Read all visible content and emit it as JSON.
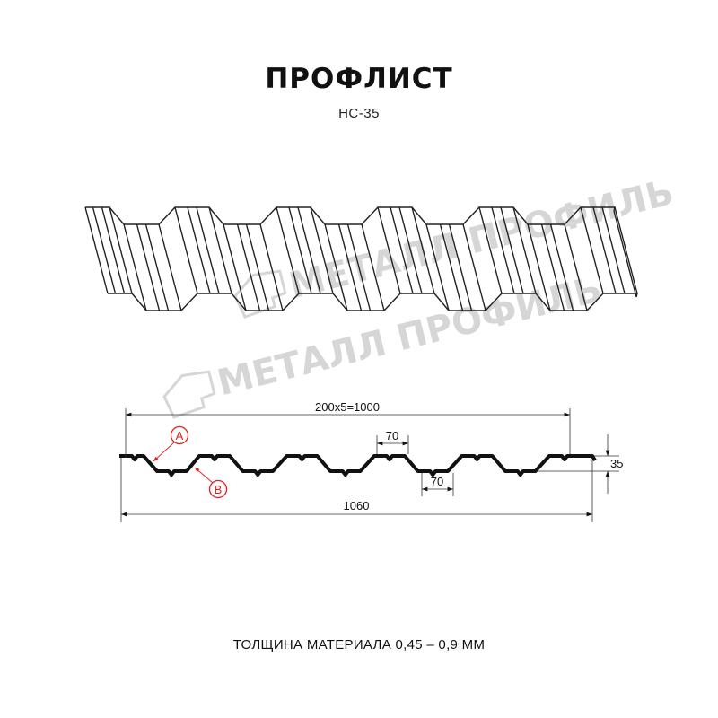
{
  "header": {
    "title": "ПРОФЛИСТ",
    "subtitle": "НС-35"
  },
  "watermark": {
    "text": "МЕТАЛЛ ПРОФИЛЬ"
  },
  "dimensions": {
    "pitch_total": "200x5=1000",
    "crest_width": "70",
    "valley_width": "70",
    "height": "35",
    "overall_width": "1060"
  },
  "markers": {
    "a": "A",
    "b": "B"
  },
  "footer": {
    "thickness": "ТОЛЩИНА МАТЕРИАЛА 0,45 – 0,9 ММ"
  },
  "colors": {
    "profile": "#111111",
    "marker": "#e0201b",
    "watermark": "#d6d6d6"
  }
}
